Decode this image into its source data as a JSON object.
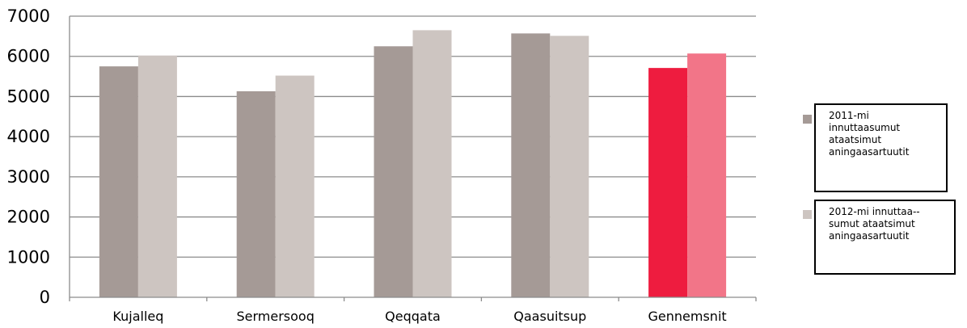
{
  "chart_data": {
    "type": "bar",
    "categories": [
      "Kujalleq",
      "Sermersooq",
      "Qeqqata",
      "Qaasuitsup",
      "Gennemsnit"
    ],
    "series": [
      {
        "name": "2011-mi innuttaasumut ataatsimut aningaasartuutit",
        "values": [
          5750,
          5130,
          6250,
          6570,
          5710
        ],
        "color": "#a59a96"
      },
      {
        "name": "2012-mi innuttaa--sumut ataatsimut aningaasartuutit",
        "values": [
          6020,
          5520,
          6650,
          6510,
          6070
        ],
        "color": "#cdc5c1"
      }
    ],
    "highlight": {
      "category": "Gennemsnit",
      "colors": [
        "#ee1c3f",
        "#f27588"
      ]
    },
    "yticks": [
      "0",
      "1000",
      "2000",
      "3000",
      "4000",
      "5000",
      "6000",
      "7000"
    ],
    "ylim": [
      0,
      7000
    ],
    "grid": true,
    "title": "",
    "xlabel": "",
    "ylabel": "",
    "legend_position": "right"
  },
  "legend": {
    "items": [
      {
        "label": "2011-mi\ninnuttaasumut\nataatsimut\naningaasartuutit"
      },
      {
        "label": "2012-mi innuttaa--\nsumut ataatsimut\naningaasartuutit"
      }
    ]
  }
}
